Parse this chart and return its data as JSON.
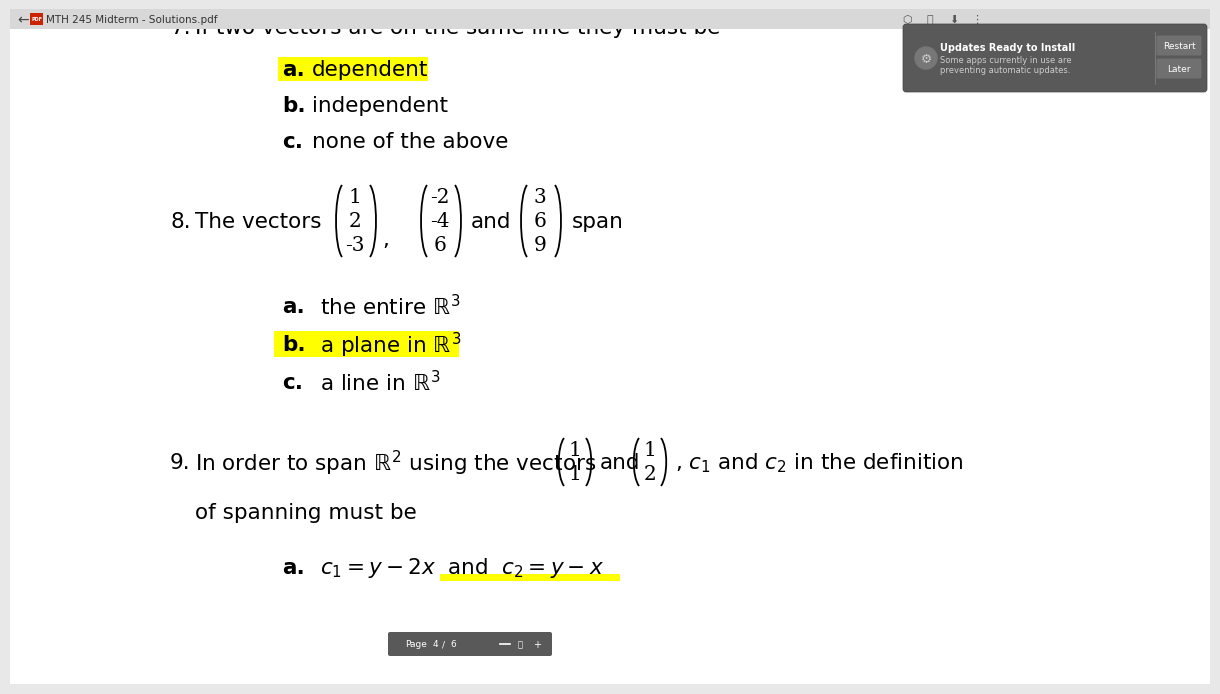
{
  "bg_color": "#e8e8e8",
  "page_bg": "#f5f5f5",
  "title_bar_color": "#d8d8d8",
  "title_bar_text": "MTH 245 Midterm - Solutions.pdf",
  "q7_text": "7.    If two vectors are on the same line they must be",
  "q8_v1": [
    "1",
    "2",
    "-3"
  ],
  "q8_v2": [
    "-2",
    "-4",
    "6"
  ],
  "q8_v3": [
    "3",
    "6",
    "9"
  ],
  "q9_v1": [
    "1",
    "1"
  ],
  "q9_v2": [
    "1",
    "2"
  ],
  "highlight_yellow": "#ffff00",
  "popup_bg": "#595959",
  "popup_btn_bg": "#707070",
  "toolbar_bg": "#595959"
}
